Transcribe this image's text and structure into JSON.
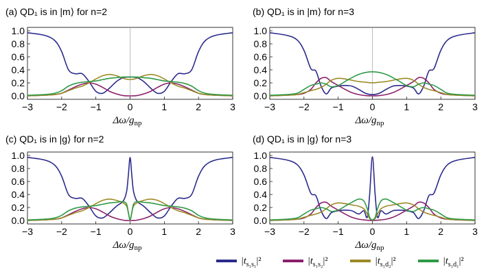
{
  "legend": {
    "placement": "bottom-right",
    "items": [
      {
        "series": "t_s1s1",
        "text": "|t",
        "sub": "s₁s₁",
        "post": "|²",
        "color": "#2a2a8c"
      },
      {
        "series": "t_s1s2",
        "text": "|t",
        "sub": "s₁s₂",
        "post": "|²",
        "color": "#8b1f6a"
      },
      {
        "series": "t_s1d2",
        "text": "|t",
        "sub": "s₁d₂",
        "post": "|²",
        "color": "#9c8a26"
      },
      {
        "series": "t_s1d1",
        "text": "|t",
        "sub": "s₁d₁",
        "post": "|²",
        "color": "#2e9a46"
      }
    ]
  },
  "chart_data": [
    {
      "id": "a",
      "type": "line",
      "title": "(a) QD₁ is in |m⟩ for n=2",
      "xlabel": "Δω/g",
      "xlabel_sub": "np",
      "xlim": [
        -3,
        3
      ],
      "ylim": [
        0,
        1.0
      ],
      "xticks": [
        "−3",
        "−2",
        "−1",
        "0",
        "1",
        "2",
        "3"
      ],
      "yticks": [
        "0.0",
        "0.2",
        "0.4",
        "0.6",
        "0.8",
        "1.0"
      ],
      "vline_at_zero": true,
      "x": [
        -3,
        -2.5,
        -2.2,
        -2.0,
        -1.8,
        -1.6,
        -1.4,
        -1.2,
        -1.0,
        -0.8,
        -0.6,
        -0.4,
        -0.2,
        0,
        0.2,
        0.4,
        0.6,
        0.8,
        1.0,
        1.2,
        1.4,
        1.6,
        1.8,
        2.0,
        2.2,
        2.5,
        3
      ],
      "series": [
        {
          "key": "t_s1s1",
          "color": "#2a2a8c",
          "values": [
            0.97,
            0.93,
            0.85,
            0.68,
            0.4,
            0.34,
            0.34,
            0.22,
            0.07,
            0.04,
            0.12,
            0.22,
            0.28,
            0.29,
            0.28,
            0.22,
            0.12,
            0.04,
            0.07,
            0.22,
            0.34,
            0.34,
            0.4,
            0.68,
            0.85,
            0.93,
            0.97
          ]
        },
        {
          "key": "t_s1s2",
          "color": "#8b1f6a",
          "values": [
            0.0,
            0.01,
            0.02,
            0.04,
            0.09,
            0.14,
            0.18,
            0.2,
            0.18,
            0.13,
            0.07,
            0.03,
            0.005,
            0.0,
            0.005,
            0.03,
            0.07,
            0.13,
            0.18,
            0.2,
            0.18,
            0.14,
            0.09,
            0.04,
            0.02,
            0.01,
            0.0
          ]
        },
        {
          "key": "t_s1d2",
          "color": "#9c8a26",
          "values": [
            0.0,
            0.01,
            0.02,
            0.04,
            0.08,
            0.12,
            0.15,
            0.2,
            0.26,
            0.31,
            0.33,
            0.31,
            0.27,
            0.25,
            0.27,
            0.31,
            0.33,
            0.31,
            0.26,
            0.2,
            0.15,
            0.12,
            0.08,
            0.04,
            0.02,
            0.01,
            0.0
          ]
        },
        {
          "key": "t_s1d1",
          "color": "#2e9a46",
          "values": [
            0.01,
            0.02,
            0.04,
            0.08,
            0.15,
            0.19,
            0.21,
            0.22,
            0.23,
            0.25,
            0.27,
            0.28,
            0.29,
            0.29,
            0.29,
            0.28,
            0.27,
            0.25,
            0.23,
            0.22,
            0.21,
            0.19,
            0.15,
            0.08,
            0.04,
            0.02,
            0.01
          ]
        }
      ]
    },
    {
      "id": "b",
      "type": "line",
      "title": "(b) QD₁ is in |m⟩ for n=3",
      "xlabel": "Δω/g",
      "xlabel_sub": "np",
      "xlim": [
        -3,
        3
      ],
      "ylim": [
        0,
        1.0
      ],
      "xticks": [
        "−3",
        "−2",
        "−1",
        "0",
        "1",
        "2",
        "3"
      ],
      "yticks": [
        "0.0",
        "0.2",
        "0.4",
        "0.6",
        "0.8",
        "1.0"
      ],
      "vline_at_zero": true,
      "x": [
        -3,
        -2.5,
        -2.2,
        -2.0,
        -1.8,
        -1.65,
        -1.5,
        -1.35,
        -1.2,
        -1.0,
        -0.8,
        -0.6,
        -0.4,
        -0.2,
        0,
        0.2,
        0.4,
        0.6,
        0.8,
        1.0,
        1.2,
        1.35,
        1.5,
        1.65,
        1.8,
        2.0,
        2.2,
        2.5,
        3
      ],
      "series": [
        {
          "key": "t_s1s1",
          "color": "#2a2a8c",
          "values": [
            0.97,
            0.93,
            0.86,
            0.7,
            0.42,
            0.38,
            0.15,
            0.03,
            0.12,
            0.15,
            0.16,
            0.15,
            0.1,
            0.04,
            0.02,
            0.04,
            0.1,
            0.15,
            0.16,
            0.15,
            0.12,
            0.03,
            0.15,
            0.38,
            0.42,
            0.7,
            0.86,
            0.93,
            0.97
          ]
        },
        {
          "key": "t_s1s2",
          "color": "#8b1f6a",
          "values": [
            0.0,
            0.01,
            0.02,
            0.04,
            0.1,
            0.2,
            0.27,
            0.28,
            0.22,
            0.16,
            0.1,
            0.05,
            0.02,
            0.005,
            0.0,
            0.005,
            0.02,
            0.05,
            0.1,
            0.16,
            0.22,
            0.28,
            0.27,
            0.2,
            0.1,
            0.04,
            0.02,
            0.01,
            0.0
          ]
        },
        {
          "key": "t_s1d2",
          "color": "#9c8a26",
          "values": [
            0.0,
            0.01,
            0.02,
            0.05,
            0.08,
            0.1,
            0.13,
            0.18,
            0.24,
            0.27,
            0.26,
            0.24,
            0.22,
            0.21,
            0.2,
            0.21,
            0.22,
            0.24,
            0.26,
            0.27,
            0.24,
            0.18,
            0.13,
            0.1,
            0.08,
            0.05,
            0.02,
            0.01,
            0.0
          ]
        },
        {
          "key": "t_s1d1",
          "color": "#2e9a46",
          "values": [
            0.01,
            0.02,
            0.04,
            0.1,
            0.16,
            0.18,
            0.2,
            0.18,
            0.14,
            0.16,
            0.22,
            0.28,
            0.33,
            0.36,
            0.37,
            0.36,
            0.33,
            0.28,
            0.22,
            0.16,
            0.14,
            0.18,
            0.2,
            0.18,
            0.16,
            0.1,
            0.04,
            0.02,
            0.01
          ]
        }
      ]
    },
    {
      "id": "c",
      "type": "line",
      "title": "(c) QD₁ is in |g⟩ for n=2",
      "xlabel": "Δω/g",
      "xlabel_sub": "np",
      "xlim": [
        -3,
        3
      ],
      "ylim": [
        0,
        1.0
      ],
      "xticks": [
        "−3",
        "−2",
        "−1",
        "0",
        "1",
        "2",
        "3"
      ],
      "yticks": [
        "0.0",
        "0.2",
        "0.4",
        "0.6",
        "0.8",
        "1.0"
      ],
      "vline_at_zero": false,
      "x": [
        -3,
        -2.5,
        -2.2,
        -2.0,
        -1.8,
        -1.6,
        -1.4,
        -1.2,
        -1.0,
        -0.8,
        -0.6,
        -0.4,
        -0.2,
        -0.1,
        -0.05,
        0,
        0.05,
        0.1,
        0.2,
        0.4,
        0.6,
        0.8,
        1.0,
        1.2,
        1.4,
        1.6,
        1.8,
        2.0,
        2.2,
        2.5,
        3
      ],
      "series": [
        {
          "key": "t_s1s1",
          "color": "#2a2a8c",
          "values": [
            0.97,
            0.93,
            0.85,
            0.68,
            0.4,
            0.34,
            0.34,
            0.22,
            0.07,
            0.04,
            0.12,
            0.22,
            0.3,
            0.45,
            0.7,
            0.97,
            0.7,
            0.45,
            0.3,
            0.22,
            0.12,
            0.04,
            0.07,
            0.22,
            0.34,
            0.34,
            0.4,
            0.68,
            0.85,
            0.93,
            0.97
          ]
        },
        {
          "key": "t_s1s2",
          "color": "#8b1f6a",
          "values": [
            0.0,
            0.01,
            0.02,
            0.04,
            0.09,
            0.14,
            0.18,
            0.2,
            0.18,
            0.13,
            0.07,
            0.03,
            0.005,
            0.002,
            0.0,
            0.0,
            0.0,
            0.002,
            0.005,
            0.03,
            0.07,
            0.13,
            0.18,
            0.2,
            0.18,
            0.14,
            0.09,
            0.04,
            0.02,
            0.01,
            0.0
          ]
        },
        {
          "key": "t_s1d2",
          "color": "#9c8a26",
          "values": [
            0.0,
            0.01,
            0.02,
            0.04,
            0.08,
            0.12,
            0.15,
            0.2,
            0.26,
            0.31,
            0.33,
            0.31,
            0.27,
            0.22,
            0.12,
            0.01,
            0.12,
            0.22,
            0.27,
            0.31,
            0.33,
            0.31,
            0.26,
            0.2,
            0.15,
            0.12,
            0.08,
            0.04,
            0.02,
            0.01,
            0.0
          ]
        },
        {
          "key": "t_s1d1",
          "color": "#2e9a46",
          "values": [
            0.01,
            0.02,
            0.04,
            0.08,
            0.15,
            0.19,
            0.21,
            0.22,
            0.23,
            0.25,
            0.27,
            0.28,
            0.29,
            0.25,
            0.12,
            0.01,
            0.12,
            0.25,
            0.29,
            0.28,
            0.27,
            0.25,
            0.23,
            0.22,
            0.21,
            0.19,
            0.15,
            0.08,
            0.04,
            0.02,
            0.01
          ]
        }
      ]
    },
    {
      "id": "d",
      "type": "line",
      "title": "(d) QD₁ is in |g⟩ for n=3",
      "xlabel": "Δω/g",
      "xlabel_sub": "np",
      "xlim": [
        -3,
        3
      ],
      "ylim": [
        0,
        1.0
      ],
      "xticks": [
        "−3",
        "−2",
        "−1",
        "0",
        "1",
        "2",
        "3"
      ],
      "yticks": [
        "0.0",
        "0.2",
        "0.4",
        "0.6",
        "0.8",
        "1.0"
      ],
      "vline_at_zero": false,
      "x": [
        -3,
        -2.5,
        -2.2,
        -2.0,
        -1.8,
        -1.65,
        -1.5,
        -1.35,
        -1.2,
        -1.0,
        -0.8,
        -0.6,
        -0.4,
        -0.25,
        -0.15,
        -0.08,
        0,
        0.08,
        0.15,
        0.25,
        0.4,
        0.6,
        0.8,
        1.0,
        1.2,
        1.35,
        1.5,
        1.65,
        1.8,
        2.0,
        2.2,
        2.5,
        3
      ],
      "series": [
        {
          "key": "t_s1s1",
          "color": "#2a2a8c",
          "values": [
            0.97,
            0.93,
            0.86,
            0.7,
            0.42,
            0.38,
            0.15,
            0.03,
            0.12,
            0.15,
            0.16,
            0.15,
            0.1,
            0.15,
            0.05,
            0.4,
            0.98,
            0.4,
            0.05,
            0.15,
            0.1,
            0.15,
            0.16,
            0.15,
            0.12,
            0.03,
            0.15,
            0.38,
            0.42,
            0.7,
            0.86,
            0.93,
            0.97
          ]
        },
        {
          "key": "t_s1s2",
          "color": "#8b1f6a",
          "values": [
            0.0,
            0.01,
            0.02,
            0.04,
            0.1,
            0.2,
            0.27,
            0.28,
            0.22,
            0.16,
            0.1,
            0.05,
            0.02,
            0.01,
            0.005,
            0.002,
            0.0,
            0.002,
            0.005,
            0.01,
            0.02,
            0.05,
            0.1,
            0.16,
            0.22,
            0.28,
            0.27,
            0.2,
            0.1,
            0.04,
            0.02,
            0.01,
            0.0
          ]
        },
        {
          "key": "t_s1d2",
          "color": "#9c8a26",
          "values": [
            0.0,
            0.01,
            0.02,
            0.05,
            0.08,
            0.1,
            0.13,
            0.18,
            0.24,
            0.27,
            0.26,
            0.24,
            0.22,
            0.18,
            0.1,
            0.03,
            0.01,
            0.03,
            0.1,
            0.18,
            0.22,
            0.24,
            0.26,
            0.27,
            0.24,
            0.18,
            0.13,
            0.1,
            0.08,
            0.05,
            0.02,
            0.01,
            0.0
          ]
        },
        {
          "key": "t_s1d1",
          "color": "#2e9a46",
          "values": [
            0.01,
            0.02,
            0.04,
            0.1,
            0.16,
            0.18,
            0.2,
            0.18,
            0.14,
            0.16,
            0.22,
            0.28,
            0.33,
            0.3,
            0.18,
            0.05,
            0.01,
            0.05,
            0.18,
            0.3,
            0.33,
            0.28,
            0.22,
            0.16,
            0.14,
            0.18,
            0.2,
            0.18,
            0.16,
            0.1,
            0.04,
            0.02,
            0.01
          ]
        }
      ]
    }
  ]
}
